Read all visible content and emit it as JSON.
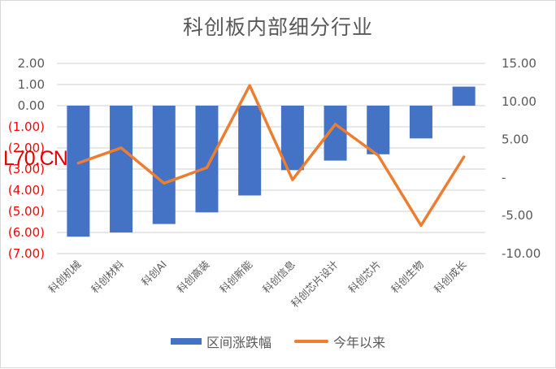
{
  "chart_data": {
    "type": "bar+line",
    "title": "科创板内部细分行业",
    "categories": [
      "科创机械",
      "科创材料",
      "科创AI",
      "科创高装",
      "科创新能",
      "科创信息",
      "科创芯片设计",
      "科创芯片",
      "科创生物",
      "科创成长"
    ],
    "series": [
      {
        "name": "区间涨跌幅",
        "type": "bar",
        "axis": "left",
        "color": "#4472c4",
        "values": [
          -6.2,
          -6.0,
          -5.6,
          -5.05,
          -4.25,
          -3.05,
          -2.6,
          -2.3,
          -1.55,
          0.9
        ]
      },
      {
        "name": "今年以来",
        "type": "line",
        "axis": "right",
        "color": "#ed7d31",
        "values": [
          1.9,
          3.9,
          -0.75,
          1.3,
          12.1,
          -0.3,
          7.0,
          2.9,
          -6.3,
          2.7
        ]
      }
    ],
    "left_axis": {
      "ylim": [
        -7,
        2
      ],
      "ticks": [
        2,
        1,
        0,
        -1,
        -2,
        -3,
        -4,
        -5,
        -6,
        -7
      ],
      "tick_labels": [
        "2.00",
        "1.00",
        "0.00",
        "(1.00)",
        "(2.00)",
        "(3.00)",
        "(4.00)",
        "(5.00)",
        "(6.00)",
        "(7.00)"
      ],
      "positive_color": "#595959",
      "negative_color": "#ff0000"
    },
    "right_axis": {
      "ylim": [
        -10,
        15
      ],
      "ticks": [
        15,
        10,
        5,
        0,
        -5,
        -10
      ],
      "tick_labels": [
        "15.00",
        "10.00",
        "5.00",
        "-",
        "-5.00",
        "-10.00"
      ]
    },
    "grid": true,
    "legend_position": "bottom",
    "xlabel": "",
    "ylabel": ""
  },
  "legend": {
    "bar_label": "区间涨跌幅",
    "line_label": "今年以来"
  },
  "watermark": {
    "text": "L70.CN",
    "color": "#e00000"
  }
}
